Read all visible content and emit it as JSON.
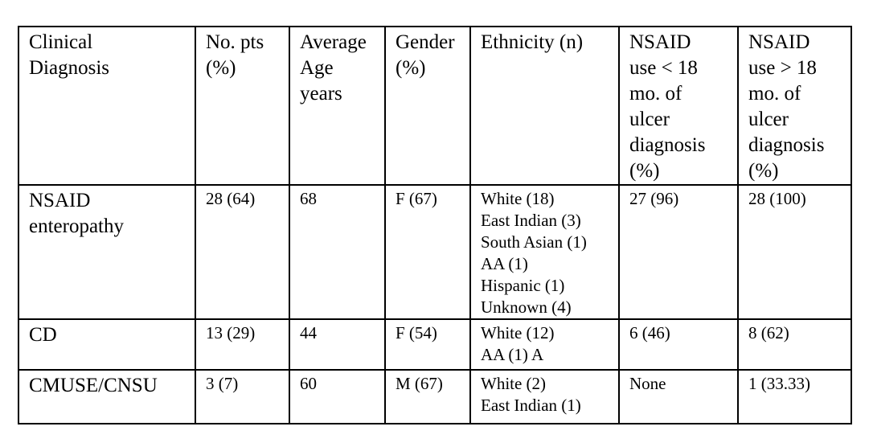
{
  "headers": [
    [
      "Clinical",
      "Diagnosis"
    ],
    [
      "No. pts",
      "(%)"
    ],
    [
      "Average",
      "Age",
      "years"
    ],
    [
      "Gender",
      "(%)"
    ],
    [
      "Ethnicity (n)"
    ],
    [
      "NSAID",
      "use < 18",
      "mo. of",
      "ulcer",
      "diagnosis",
      "(%)"
    ],
    [
      "NSAID",
      "use > 18",
      "mo. of",
      "ulcer",
      "diagnosis",
      "(%)"
    ]
  ],
  "rows": [
    {
      "diagnosis": [
        "NSAID",
        "enteropathy"
      ],
      "pts": "28 (64)",
      "age": "68",
      "gender": "F (67)",
      "ethnicity": [
        "White (18)",
        "East Indian (3)",
        "South Asian (1)",
        "AA (1)",
        "Hispanic (1)",
        "Unknown (4)"
      ],
      "lt18": "27 (96)",
      "gt18": "28 (100)"
    },
    {
      "diagnosis": [
        "CD"
      ],
      "pts": "13 (29)",
      "age": "44",
      "gender": "F (54)",
      "ethnicity": [
        "White (12)",
        "AA (1) A"
      ],
      "lt18": "6 (46)",
      "gt18": "8 (62)"
    },
    {
      "diagnosis": [
        "CMUSE/CNSU"
      ],
      "pts": "3 (7)",
      "age": "60",
      "gender": "M (67)",
      "ethnicity": [
        "White (2)",
        "East Indian (1)"
      ],
      "lt18": "None",
      "gt18": "1 (33.33)"
    }
  ]
}
